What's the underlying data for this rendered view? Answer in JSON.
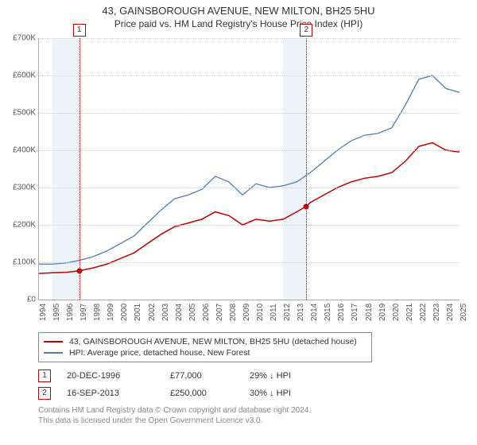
{
  "title": "43, GAINSBOROUGH AVENUE, NEW MILTON, BH25 5HU",
  "subtitle": "Price paid vs. HM Land Registry's House Price Index (HPI)",
  "chart": {
    "type": "line",
    "background_color": "#ffffff",
    "grid_color": "#cccccc",
    "axis_color": "#aaaaaa",
    "shade_color": "#eef3fa",
    "x_min_year": 1994,
    "x_max_year": 2025,
    "y_min": 0,
    "y_max": 700000,
    "y_tick_step": 100000,
    "y_tick_labels": [
      "£0",
      "£100K",
      "£200K",
      "£300K",
      "£400K",
      "£500K",
      "£600K",
      "£700K"
    ],
    "x_tick_years": [
      1994,
      1995,
      1996,
      1997,
      1998,
      1999,
      2000,
      2001,
      2002,
      2003,
      2004,
      2005,
      2006,
      2007,
      2008,
      2009,
      2010,
      2011,
      2012,
      2013,
      2014,
      2015,
      2016,
      2017,
      2018,
      2019,
      2020,
      2021,
      2022,
      2023,
      2024,
      2025
    ],
    "shaded_ranges": [
      {
        "from_year": 1995.0,
        "to_year": 1997.0
      },
      {
        "from_year": 2012.0,
        "to_year": 2013.7
      }
    ],
    "markers": [
      {
        "id": "1",
        "year": 1996.97,
        "color": "#c00000"
      },
      {
        "id": "2",
        "year": 2013.71,
        "color": "#c00000"
      }
    ],
    "series": [
      {
        "name": "property",
        "label": "43, GAINSBOROUGH AVENUE, NEW MILTON, BH25 5HU (detached house)",
        "color": "#c00000",
        "line_width": 1.5,
        "points": [
          [
            1994,
            70000
          ],
          [
            1995,
            72000
          ],
          [
            1996,
            73000
          ],
          [
            1996.97,
            77000
          ],
          [
            1998,
            85000
          ],
          [
            1999,
            95000
          ],
          [
            2000,
            110000
          ],
          [
            2001,
            125000
          ],
          [
            2002,
            150000
          ],
          [
            2003,
            175000
          ],
          [
            2004,
            195000
          ],
          [
            2005,
            205000
          ],
          [
            2006,
            215000
          ],
          [
            2007,
            235000
          ],
          [
            2008,
            225000
          ],
          [
            2009,
            200000
          ],
          [
            2010,
            215000
          ],
          [
            2011,
            210000
          ],
          [
            2012,
            215000
          ],
          [
            2013,
            235000
          ],
          [
            2013.71,
            250000
          ],
          [
            2014,
            260000
          ],
          [
            2015,
            280000
          ],
          [
            2016,
            300000
          ],
          [
            2017,
            315000
          ],
          [
            2018,
            325000
          ],
          [
            2019,
            330000
          ],
          [
            2020,
            340000
          ],
          [
            2021,
            370000
          ],
          [
            2022,
            410000
          ],
          [
            2023,
            420000
          ],
          [
            2024,
            400000
          ],
          [
            2025,
            395000
          ]
        ]
      },
      {
        "name": "hpi",
        "label": "HPI: Average price, detached house, New Forest",
        "color": "#4a7ebb",
        "line_width": 1.3,
        "points": [
          [
            1994,
            95000
          ],
          [
            1995,
            95000
          ],
          [
            1996,
            98000
          ],
          [
            1997,
            105000
          ],
          [
            1998,
            115000
          ],
          [
            1999,
            130000
          ],
          [
            2000,
            150000
          ],
          [
            2001,
            170000
          ],
          [
            2002,
            205000
          ],
          [
            2003,
            240000
          ],
          [
            2004,
            270000
          ],
          [
            2005,
            280000
          ],
          [
            2006,
            295000
          ],
          [
            2007,
            330000
          ],
          [
            2008,
            315000
          ],
          [
            2009,
            280000
          ],
          [
            2010,
            310000
          ],
          [
            2011,
            300000
          ],
          [
            2012,
            305000
          ],
          [
            2013,
            315000
          ],
          [
            2014,
            340000
          ],
          [
            2015,
            370000
          ],
          [
            2016,
            400000
          ],
          [
            2017,
            425000
          ],
          [
            2018,
            440000
          ],
          [
            2019,
            445000
          ],
          [
            2020,
            460000
          ],
          [
            2021,
            520000
          ],
          [
            2022,
            590000
          ],
          [
            2023,
            600000
          ],
          [
            2024,
            565000
          ],
          [
            2025,
            555000
          ]
        ]
      }
    ],
    "sale_points": [
      {
        "year": 1996.97,
        "price": 77000,
        "color": "#c00000"
      },
      {
        "year": 2013.71,
        "price": 250000,
        "color": "#c00000"
      }
    ]
  },
  "events": [
    {
      "marker": "1",
      "marker_color": "#c00000",
      "date": "20-DEC-1996",
      "price": "£77,000",
      "delta": "29% ↓ HPI"
    },
    {
      "marker": "2",
      "marker_color": "#c00000",
      "date": "16-SEP-2013",
      "price": "£250,000",
      "delta": "30% ↓ HPI"
    }
  ],
  "footnote_line1": "Contains HM Land Registry data © Crown copyright and database right 2024.",
  "footnote_line2": "This data is licensed under the Open Government Licence v3.0."
}
